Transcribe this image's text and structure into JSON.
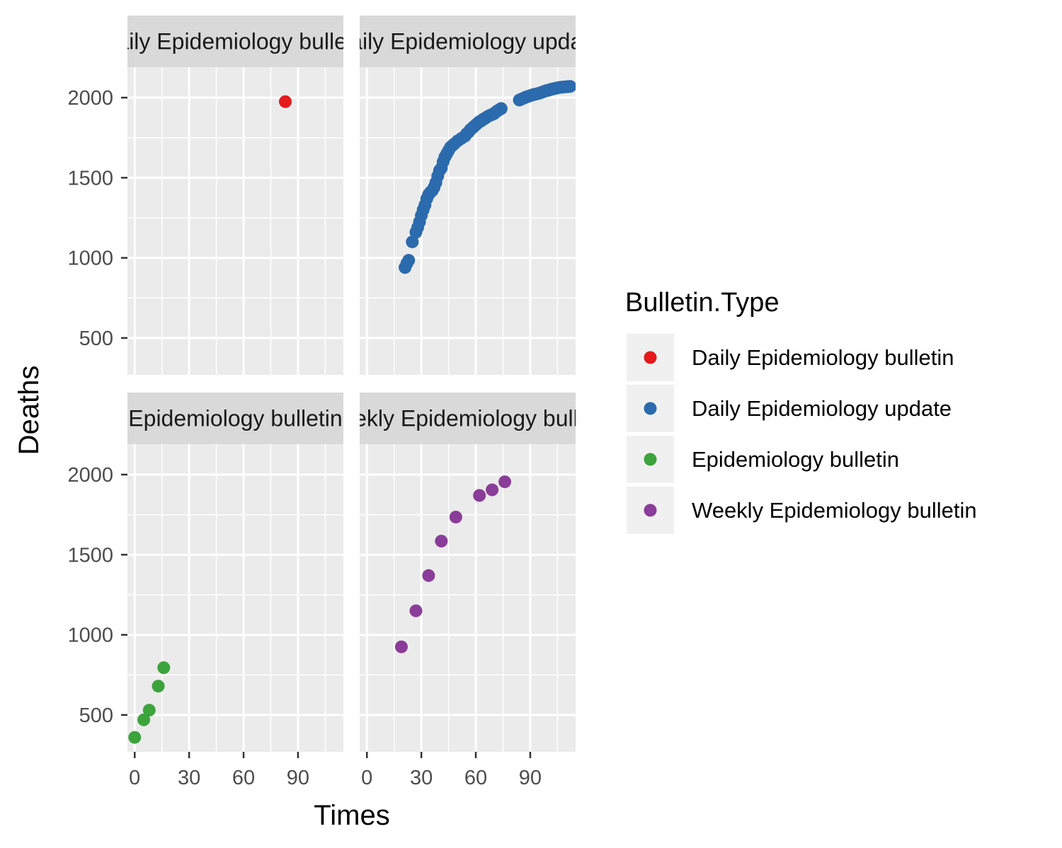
{
  "chart_data": {
    "type": "scatter",
    "facet_layout": "2x2 grid, shared axes",
    "xlabel": "Times",
    "ylabel": "Deaths",
    "xlim": [
      -4,
      115
    ],
    "ylim": [
      270,
      2190
    ],
    "x_ticks": [
      0,
      30,
      60,
      90
    ],
    "y_ticks": [
      500,
      1000,
      1500,
      2000
    ],
    "grid": true,
    "legend": {
      "title": "Bulletin.Type",
      "placement": "right",
      "entries": [
        {
          "label": "Daily Epidemiology bulletin",
          "color": "#E41A1C"
        },
        {
          "label": "Daily Epidemiology update",
          "color": "#2B6AAD"
        },
        {
          "label": "Epidemiology bulletin",
          "color": "#3DA33D"
        },
        {
          "label": "Weekly Epidemiology bulletin",
          "color": "#8A3D98"
        }
      ]
    },
    "panels": [
      {
        "strip_label": "Daily Epidemiology bulletin",
        "color": "#E41A1C",
        "points": [
          [
            83,
            1975
          ]
        ]
      },
      {
        "strip_label": "Daily Epidemiology update",
        "color": "#2B6AAD",
        "points": [
          [
            21,
            940
          ],
          [
            22,
            965
          ],
          [
            23,
            985
          ],
          [
            25,
            1100
          ],
          [
            27,
            1160
          ],
          [
            28,
            1190
          ],
          [
            29,
            1225
          ],
          [
            30,
            1265
          ],
          [
            31,
            1300
          ],
          [
            32,
            1330
          ],
          [
            33,
            1370
          ],
          [
            34,
            1395
          ],
          [
            35,
            1410
          ],
          [
            36,
            1420
          ],
          [
            37,
            1440
          ],
          [
            38,
            1470
          ],
          [
            39,
            1510
          ],
          [
            40,
            1545
          ],
          [
            41,
            1560
          ],
          [
            42,
            1600
          ],
          [
            43,
            1630
          ],
          [
            44,
            1650
          ],
          [
            45,
            1670
          ],
          [
            46,
            1690
          ],
          [
            47,
            1700
          ],
          [
            48,
            1710
          ],
          [
            50,
            1730
          ],
          [
            52,
            1745
          ],
          [
            54,
            1760
          ],
          [
            55,
            1775
          ],
          [
            56,
            1785
          ],
          [
            57,
            1800
          ],
          [
            58,
            1810
          ],
          [
            59,
            1820
          ],
          [
            60,
            1830
          ],
          [
            61,
            1840
          ],
          [
            62,
            1850
          ],
          [
            63,
            1855
          ],
          [
            64,
            1865
          ],
          [
            65,
            1870
          ],
          [
            66,
            1878
          ],
          [
            67,
            1885
          ],
          [
            68,
            1890
          ],
          [
            69,
            1895
          ],
          [
            70,
            1900
          ],
          [
            71,
            1910
          ],
          [
            72,
            1918
          ],
          [
            73,
            1925
          ],
          [
            74,
            1932
          ],
          [
            84,
            1985
          ],
          [
            85,
            1990
          ],
          [
            86,
            1995
          ],
          [
            87,
            2000
          ],
          [
            88,
            2005
          ],
          [
            89,
            2008
          ],
          [
            90,
            2012
          ],
          [
            91,
            2016
          ],
          [
            92,
            2020
          ],
          [
            93,
            2022
          ],
          [
            94,
            2025
          ],
          [
            95,
            2028
          ],
          [
            96,
            2032
          ],
          [
            97,
            2036
          ],
          [
            98,
            2040
          ],
          [
            99,
            2044
          ],
          [
            100,
            2046
          ],
          [
            101,
            2050
          ],
          [
            102,
            2053
          ],
          [
            103,
            2056
          ],
          [
            104,
            2058
          ],
          [
            105,
            2061
          ],
          [
            106,
            2063
          ],
          [
            107,
            2065
          ],
          [
            108,
            2066
          ],
          [
            109,
            2067
          ],
          [
            110,
            2068
          ],
          [
            111,
            2069
          ],
          [
            112,
            2070
          ]
        ]
      },
      {
        "strip_label": "Epidemiology bulletin",
        "color": "#3DA33D",
        "points": [
          [
            0,
            360
          ],
          [
            5,
            470
          ],
          [
            8,
            530
          ],
          [
            13,
            680
          ],
          [
            16,
            795
          ]
        ]
      },
      {
        "strip_label": "Weekly Epidemiology bulletin",
        "color": "#8A3D98",
        "points": [
          [
            19,
            925
          ],
          [
            27,
            1150
          ],
          [
            34,
            1370
          ],
          [
            41,
            1585
          ],
          [
            49,
            1735
          ],
          [
            62,
            1870
          ],
          [
            69,
            1905
          ],
          [
            76,
            1955
          ]
        ]
      }
    ]
  }
}
